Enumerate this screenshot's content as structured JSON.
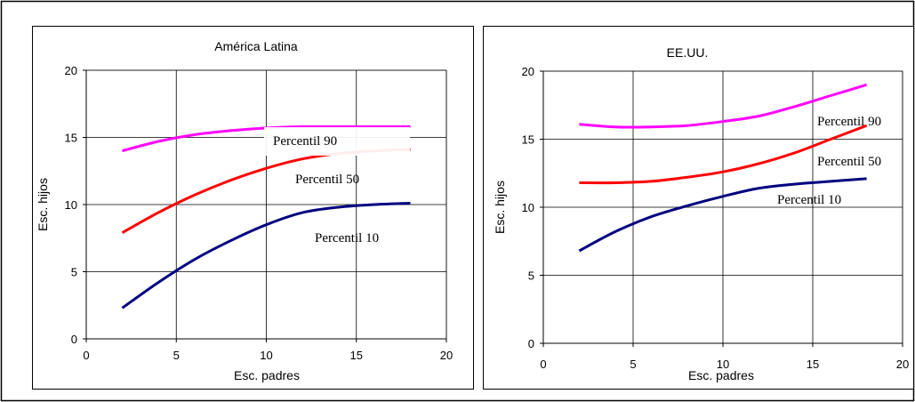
{
  "chart_data": [
    {
      "type": "line",
      "title": "América Latina",
      "xlabel": "Esc. padres",
      "ylabel": "Esc. hijos",
      "xlim": [
        0,
        20
      ],
      "ylim": [
        0,
        20
      ],
      "xticks": [
        "0",
        "5",
        "10",
        "15",
        "20"
      ],
      "yticks": [
        "0",
        "5",
        "10",
        "15",
        "20"
      ],
      "grid": true,
      "series": [
        {
          "name": "Percentil 90",
          "color": "#ff00ff",
          "x": [
            2,
            4,
            6,
            8,
            10,
            12,
            14,
            16,
            18
          ],
          "y": [
            14.0,
            14.7,
            15.2,
            15.5,
            15.7,
            15.8,
            15.8,
            15.8,
            15.8
          ]
        },
        {
          "name": "Percentil 50",
          "color": "#ff0000",
          "x": [
            2,
            4,
            6,
            8,
            10,
            12,
            14,
            16,
            18
          ],
          "y": [
            7.9,
            9.4,
            10.7,
            11.8,
            12.7,
            13.4,
            13.8,
            14.0,
            14.1
          ]
        },
        {
          "name": "Percentil 10",
          "color": "#000080",
          "x": [
            2,
            4,
            6,
            8,
            10,
            12,
            14,
            16,
            18
          ],
          "y": [
            2.3,
            4.2,
            5.9,
            7.3,
            8.5,
            9.4,
            9.8,
            10.0,
            10.1
          ]
        }
      ]
    },
    {
      "type": "line",
      "title": "EE.UU.",
      "xlabel": "Esc. padres",
      "ylabel": "Esc. hijos",
      "xlim": [
        0,
        20
      ],
      "ylim": [
        0,
        20
      ],
      "xticks": [
        "0",
        "5",
        "10",
        "15",
        "20"
      ],
      "yticks": [
        "0",
        "5",
        "10",
        "15",
        "20"
      ],
      "grid": true,
      "series": [
        {
          "name": "Percentil 90",
          "color": "#ff00ff",
          "x": [
            2,
            4,
            6,
            8,
            10,
            12,
            14,
            16,
            18
          ],
          "y": [
            16.1,
            15.9,
            15.9,
            16.0,
            16.3,
            16.7,
            17.4,
            18.2,
            19.0
          ]
        },
        {
          "name": "Percentil 50",
          "color": "#ff0000",
          "x": [
            2,
            4,
            6,
            8,
            10,
            12,
            14,
            16,
            18
          ],
          "y": [
            11.8,
            11.8,
            11.9,
            12.2,
            12.6,
            13.2,
            14.0,
            15.0,
            16.0
          ]
        },
        {
          "name": "Percentil 10",
          "color": "#000080",
          "x": [
            2,
            4,
            6,
            8,
            10,
            12,
            14,
            16,
            18
          ],
          "y": [
            6.8,
            8.2,
            9.3,
            10.1,
            10.8,
            11.4,
            11.7,
            11.9,
            12.1
          ]
        }
      ]
    }
  ]
}
